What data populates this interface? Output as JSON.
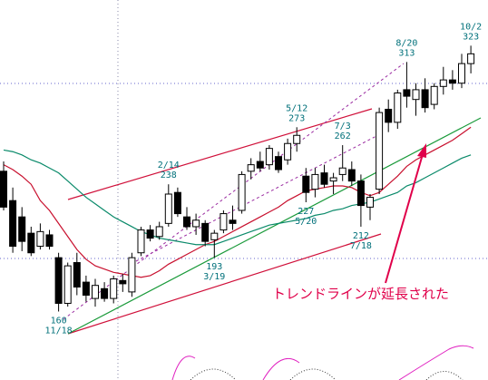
{
  "chart_data": {
    "type": "candlestick",
    "ylim": [
      118,
      351
    ],
    "up_color": "#ffffff",
    "down_color": "#000000",
    "categories": [
      null,
      null,
      null,
      null,
      null,
      null,
      "11/18",
      null,
      null,
      null,
      null,
      null,
      null,
      null,
      null,
      null,
      null,
      null,
      "2/14",
      null,
      null,
      null,
      null,
      "3/19",
      null,
      null,
      null,
      null,
      null,
      null,
      null,
      null,
      "5/12",
      "5/20",
      null,
      null,
      null,
      "7/3",
      null,
      "7/18",
      null,
      null,
      null,
      null,
      "8/20",
      null,
      null,
      null,
      null,
      null,
      null,
      "10/2"
    ],
    "candles": [
      {
        "open": 246,
        "high": 252,
        "low": 222,
        "close": 224
      },
      {
        "open": 228,
        "high": 236,
        "low": 196,
        "close": 200
      },
      {
        "open": 218,
        "high": 224,
        "low": 197,
        "close": 203
      },
      {
        "open": 208,
        "high": 212,
        "low": 194,
        "close": 196
      },
      {
        "open": 200,
        "high": 214,
        "low": 198,
        "close": 209
      },
      {
        "open": 207,
        "high": 210,
        "low": 198,
        "close": 200
      },
      {
        "open": 193,
        "high": 196,
        "low": 160,
        "close": 165
      },
      {
        "open": 165,
        "high": 190,
        "low": 163,
        "close": 188
      },
      {
        "open": 190,
        "high": 196,
        "low": 170,
        "close": 175
      },
      {
        "open": 178,
        "high": 182,
        "low": 166,
        "close": 170
      },
      {
        "open": 168,
        "high": 180,
        "low": 163,
        "close": 176
      },
      {
        "open": 174,
        "high": 178,
        "low": 166,
        "close": 168
      },
      {
        "open": 168,
        "high": 182,
        "low": 165,
        "close": 180
      },
      {
        "open": 179,
        "high": 183,
        "low": 172,
        "close": 177
      },
      {
        "open": 172,
        "high": 196,
        "low": 169,
        "close": 193
      },
      {
        "open": 196,
        "high": 212,
        "low": 194,
        "close": 210
      },
      {
        "open": 210,
        "high": 213,
        "low": 203,
        "close": 205
      },
      {
        "open": 206,
        "high": 215,
        "low": 204,
        "close": 212
      },
      {
        "open": 214,
        "high": 238,
        "low": 212,
        "close": 232
      },
      {
        "open": 233,
        "high": 236,
        "low": 218,
        "close": 220
      },
      {
        "open": 218,
        "high": 224,
        "low": 210,
        "close": 212
      },
      {
        "open": 212,
        "high": 220,
        "low": 207,
        "close": 216
      },
      {
        "open": 214,
        "high": 216,
        "low": 200,
        "close": 203
      },
      {
        "open": 204,
        "high": 210,
        "low": 193,
        "close": 208
      },
      {
        "open": 210,
        "high": 222,
        "low": 208,
        "close": 220
      },
      {
        "open": 216,
        "high": 225,
        "low": 210,
        "close": 214
      },
      {
        "open": 222,
        "high": 246,
        "low": 220,
        "close": 244
      },
      {
        "open": 246,
        "high": 254,
        "low": 241,
        "close": 250
      },
      {
        "open": 252,
        "high": 258,
        "low": 246,
        "close": 248
      },
      {
        "open": 250,
        "high": 262,
        "low": 247,
        "close": 260
      },
      {
        "open": 255,
        "high": 258,
        "low": 245,
        "close": 247
      },
      {
        "open": 253,
        "high": 266,
        "low": 250,
        "close": 263
      },
      {
        "open": 263,
        "high": 273,
        "low": 258,
        "close": 268
      },
      {
        "open": 243,
        "high": 248,
        "low": 227,
        "close": 233
      },
      {
        "open": 235,
        "high": 248,
        "low": 230,
        "close": 244
      },
      {
        "open": 245,
        "high": 250,
        "low": 236,
        "close": 238
      },
      {
        "open": 240,
        "high": 245,
        "low": 232,
        "close": 242
      },
      {
        "open": 244,
        "high": 262,
        "low": 240,
        "close": 248
      },
      {
        "open": 247,
        "high": 252,
        "low": 237,
        "close": 240
      },
      {
        "open": 240,
        "high": 244,
        "low": 212,
        "close": 225
      },
      {
        "open": 224,
        "high": 232,
        "low": 216,
        "close": 230
      },
      {
        "open": 235,
        "high": 285,
        "low": 232,
        "close": 282
      },
      {
        "open": 284,
        "high": 290,
        "low": 270,
        "close": 276
      },
      {
        "open": 276,
        "high": 296,
        "low": 272,
        "close": 294
      },
      {
        "open": 296,
        "high": 313,
        "low": 285,
        "close": 292
      },
      {
        "open": 290,
        "high": 300,
        "low": 280,
        "close": 296
      },
      {
        "open": 296,
        "high": 303,
        "low": 282,
        "close": 285
      },
      {
        "open": 287,
        "high": 300,
        "low": 284,
        "close": 298
      },
      {
        "open": 298,
        "high": 310,
        "low": 293,
        "close": 302
      },
      {
        "open": 302,
        "high": 308,
        "low": 296,
        "close": 300
      },
      {
        "open": 300,
        "high": 318,
        "low": 297,
        "close": 312
      },
      {
        "open": 312,
        "high": 323,
        "low": 306,
        "close": 318
      }
    ],
    "moving_averages": [
      {
        "color": "#c8102e",
        "values": [
          250,
          247,
          243,
          238,
          228,
          222,
          214,
          206,
          198,
          192,
          188,
          186,
          184,
          183,
          182,
          181,
          182,
          185,
          189,
          192,
          195,
          198,
          201,
          203,
          206,
          209,
          212,
          215,
          218,
          221,
          224,
          228,
          231,
          234,
          235,
          236,
          237,
          237,
          236,
          233,
          231,
          233,
          238,
          243,
          249,
          253,
          256,
          259,
          262,
          265,
          269,
          273
        ]
      },
      {
        "color": "#0a8a6a",
        "values": [
          259,
          258,
          256,
          253,
          251,
          248,
          245,
          240,
          235,
          230,
          226,
          222,
          218,
          215,
          212,
          209,
          207,
          205,
          204,
          203,
          202,
          201,
          201,
          201,
          203,
          205,
          207,
          209,
          211,
          213,
          214,
          215,
          216,
          217,
          219,
          220,
          222,
          223,
          225,
          226,
          227,
          229,
          231,
          233,
          237,
          239,
          242,
          245,
          248,
          251,
          254,
          256
        ]
      }
    ],
    "annotation": "トレンドラインが延長された"
  }
}
